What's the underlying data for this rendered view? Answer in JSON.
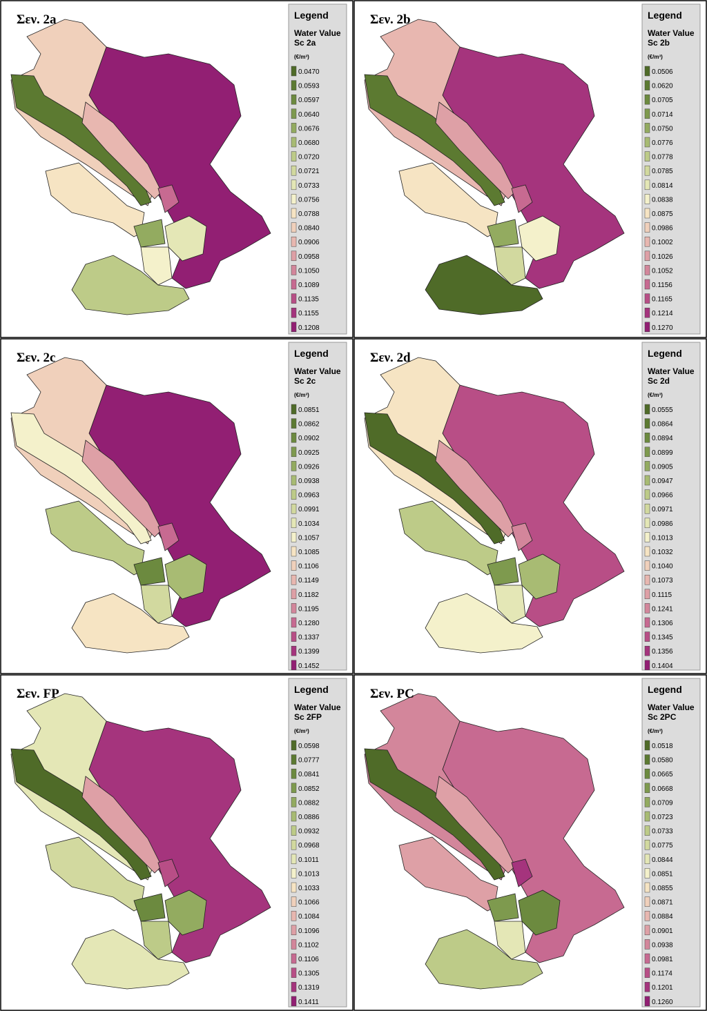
{
  "swatch_colors": [
    "#4f6b28",
    "#5c7a31",
    "#6c8a3f",
    "#7e9a4e",
    "#93ab60",
    "#a8bb73",
    "#bdcb88",
    "#d2d99f",
    "#e4e7b6",
    "#f4f1cb",
    "#f6e4c3",
    "#f0d0bb",
    "#e8b7b0",
    "#dea0a6",
    "#d3869b",
    "#c76a91",
    "#b84e86",
    "#a5347d",
    "#921f73"
  ],
  "panels": [
    {
      "title": "Σεν. 2a",
      "legend": {
        "heading": "Legend",
        "title": "Water Value",
        "subtitle": "Sc 2a",
        "unit": "(€/m³)",
        "items": [
          "0.0470",
          "0.0593",
          "0.0597",
          "0.0640",
          "0.0676",
          "0.0680",
          "0.0720",
          "0.0721",
          "0.0733",
          "0.0756",
          "0.0788",
          "0.0840",
          "0.0906",
          "0.0958",
          "0.1050",
          "0.1089",
          "0.1135",
          "0.1155",
          "0.1208"
        ]
      }
    },
    {
      "title": "Σεν. 2b",
      "legend": {
        "heading": "Legend",
        "title": "Water Value",
        "subtitle": "Sc 2b",
        "unit": "(€/m³)",
        "items": [
          "0.0506",
          "0.0620",
          "0.0705",
          "0.0714",
          "0.0750",
          "0.0776",
          "0.0778",
          "0.0785",
          "0.0814",
          "0.0838",
          "0.0875",
          "0.0986",
          "0.1002",
          "0.1026",
          "0.1052",
          "0.1156",
          "0.1165",
          "0.1214",
          "0.1270"
        ]
      }
    },
    {
      "title": "Σεν. 2c",
      "legend": {
        "heading": "Legend",
        "title": "Water Value",
        "subtitle": "Sc 2c",
        "unit": "(€/m³)",
        "items": [
          "0.0851",
          "0.0862",
          "0.0902",
          "0.0925",
          "0.0926",
          "0.0938",
          "0.0963",
          "0.0991",
          "0.1034",
          "0.1057",
          "0.1085",
          "0.1106",
          "0.1149",
          "0.1182",
          "0.1195",
          "0.1280",
          "0.1337",
          "0.1399",
          "0.1452"
        ]
      }
    },
    {
      "title": "Σεν. 2d",
      "legend": {
        "heading": "Legend",
        "title": "Water Value",
        "subtitle": "Sc 2d",
        "unit": "(€/m³)",
        "items": [
          "0.0555",
          "0.0864",
          "0.0894",
          "0.0899",
          "0.0905",
          "0.0947",
          "0.0966",
          "0.0971",
          "0.0986",
          "0.1013",
          "0.1032",
          "0.1040",
          "0.1073",
          "0.1115",
          "0.1241",
          "0.1306",
          "0.1345",
          "0.1356",
          "0.1404"
        ]
      }
    },
    {
      "title": "Σεν. FP",
      "legend": {
        "heading": "Legend",
        "title": "Water Value",
        "subtitle": "Sc 2FP",
        "unit": "(€/m³)",
        "items": [
          "0.0598",
          "0.0777",
          "0.0841",
          "0.0852",
          "0.0882",
          "0.0886",
          "0.0932",
          "0.0968",
          "0.1011",
          "0.1013",
          "0.1033",
          "0.1066",
          "0.1084",
          "0.1096",
          "0.1102",
          "0.1106",
          "0.1305",
          "0.1319",
          "0.1411"
        ]
      }
    },
    {
      "title": "Σεν. PC",
      "legend": {
        "heading": "Legend",
        "title": "Water Value",
        "subtitle": "Sc 2PC",
        "unit": "(€/m³)",
        "items": [
          "0.0518",
          "0.0580",
          "0.0665",
          "0.0668",
          "0.0709",
          "0.0723",
          "0.0733",
          "0.0775",
          "0.0844",
          "0.0851",
          "0.0855",
          "0.0871",
          "0.0884",
          "0.0901",
          "0.0938",
          "0.0981",
          "0.1174",
          "0.1201",
          "0.1260"
        ]
      }
    }
  ]
}
